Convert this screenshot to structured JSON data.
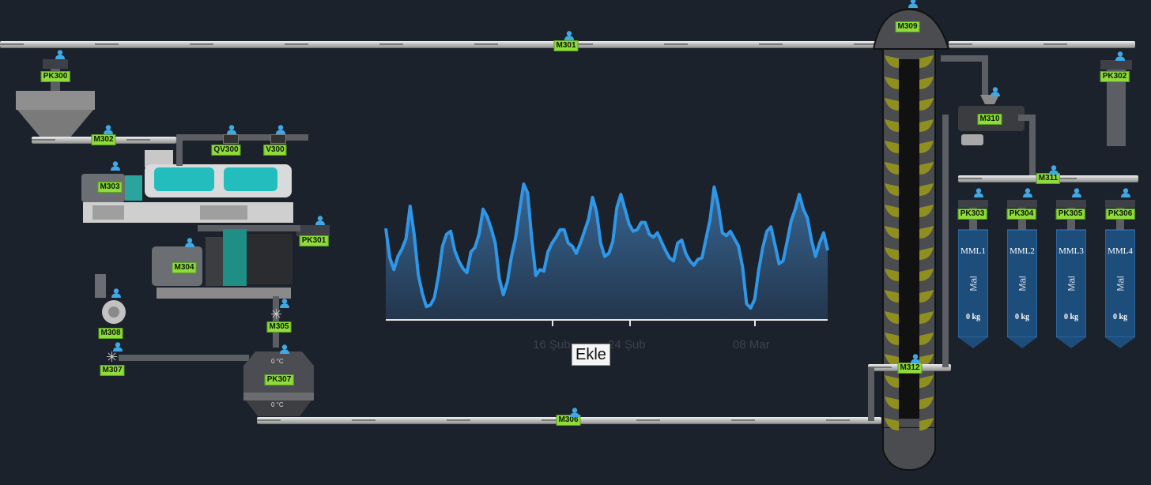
{
  "equipment": {
    "m301": "M301",
    "m302": "M302",
    "m303": "M303",
    "m304": "M304",
    "m305": "M305",
    "m306": "M306",
    "m307": "M307",
    "m308": "M308",
    "m309": "M309",
    "m310": "M310",
    "m311": "M311",
    "m312": "M312",
    "pk300": "PK300",
    "pk301": "PK301",
    "pk302": "PK302",
    "pk303": "PK303",
    "pk304": "PK304",
    "pk305": "PK305",
    "pk306": "PK306",
    "pk307": "PK307",
    "qv300": "QV300",
    "v300": "V300"
  },
  "cooler": {
    "temp_top": "0 °C",
    "temp_bottom": "0 °C"
  },
  "tanks": [
    {
      "name": "MML1",
      "label": "Mal",
      "weight": "0 kg"
    },
    {
      "name": "MML2",
      "label": "Mal",
      "weight": "0 kg"
    },
    {
      "name": "MML3",
      "label": "Mal",
      "weight": "0 kg"
    },
    {
      "name": "MML4",
      "label": "Mal",
      "weight": "0 kg"
    }
  ],
  "add_button": "Ekle",
  "chart_data": {
    "type": "area",
    "x_tick_labels": [
      "16 Şub",
      "24 Şub",
      "08 Mar"
    ],
    "values": [
      0.62,
      0.42,
      0.34,
      0.43,
      0.48,
      0.55,
      0.77,
      0.58,
      0.31,
      0.18,
      0.09,
      0.1,
      0.15,
      0.3,
      0.5,
      0.58,
      0.6,
      0.47,
      0.4,
      0.35,
      0.32,
      0.46,
      0.49,
      0.58,
      0.75,
      0.7,
      0.62,
      0.52,
      0.28,
      0.17,
      0.26,
      0.43,
      0.55,
      0.74,
      0.92,
      0.86,
      0.55,
      0.3,
      0.34,
      0.33,
      0.46,
      0.52,
      0.56,
      0.61,
      0.61,
      0.52,
      0.5,
      0.45,
      0.52,
      0.6,
      0.68,
      0.83,
      0.73,
      0.52,
      0.43,
      0.45,
      0.53,
      0.76,
      0.85,
      0.75,
      0.65,
      0.6,
      0.61,
      0.66,
      0.66,
      0.58,
      0.56,
      0.59,
      0.53,
      0.47,
      0.42,
      0.4,
      0.52,
      0.54,
      0.45,
      0.4,
      0.37,
      0.41,
      0.42,
      0.55,
      0.68,
      0.9,
      0.78,
      0.59,
      0.57,
      0.6,
      0.55,
      0.5,
      0.36,
      0.11,
      0.08,
      0.14,
      0.34,
      0.49,
      0.6,
      0.63,
      0.51,
      0.38,
      0.4,
      0.53,
      0.67,
      0.75,
      0.85,
      0.75,
      0.69,
      0.54,
      0.43,
      0.52,
      0.59,
      0.47
    ],
    "color": "#2f97e8"
  },
  "colors": {
    "tag_bg": "#8fdb3c",
    "user_icon": "#3fa9e6",
    "background": "#1c222b"
  }
}
